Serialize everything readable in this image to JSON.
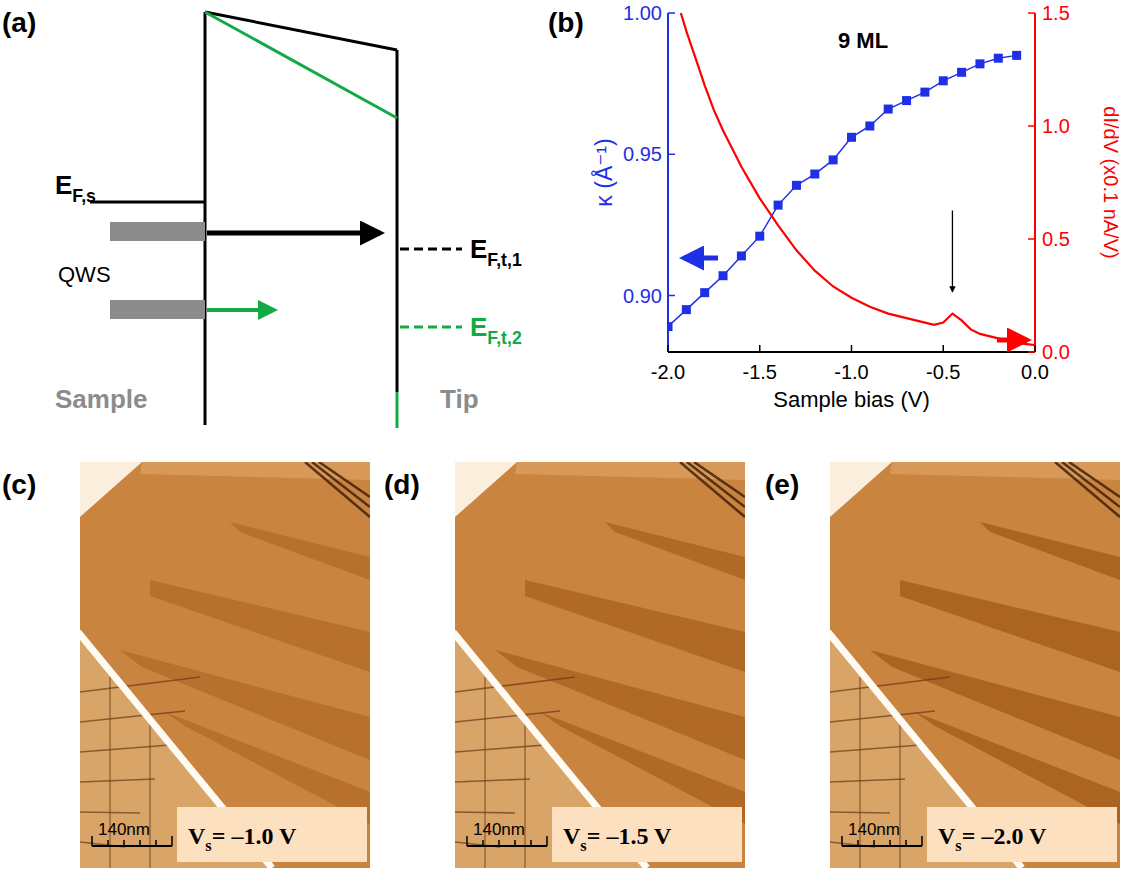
{
  "figure": {
    "panel_labels": [
      "(a)",
      "(b)",
      "(c)",
      "(d)",
      "(e)"
    ]
  },
  "diagram": {
    "fermi_sample": {
      "main": "E",
      "sub": "F,s"
    },
    "qws": "QWS",
    "fermi_tip_1": {
      "main": "E",
      "sub": "F,t,1"
    },
    "fermi_tip_2": {
      "main": "E",
      "sub": "F,t,2"
    },
    "sample": "Sample",
    "tip": "Tip"
  },
  "chart_data": {
    "type": "line",
    "title": "9 ML",
    "x_label": "Sample bias (V)",
    "y_label": "κ (Å⁻¹)",
    "y2_label": "dI/dV (x0.1 nA/V)",
    "xlim": [
      -2.0,
      0.0
    ],
    "xticks": [
      {
        "value": -2.0,
        "label": "-2.0"
      },
      {
        "value": -1.5,
        "label": "-1.5"
      },
      {
        "value": -1.0,
        "label": "-1.0"
      },
      {
        "value": -0.5,
        "label": "-0.5"
      },
      {
        "value": 0.0,
        "label": "0.0"
      }
    ],
    "ylim": [
      0.88,
      1.0
    ],
    "yticks": [
      {
        "value": 0.9,
        "label": "0.90"
      },
      0.95,
      {
        "value": 1.0,
        "label": "1.00"
      }
    ],
    "y2lim": [
      0,
      1.5
    ],
    "y2ticks": [
      {
        "value": 0,
        "label": "0.0"
      },
      0.5,
      {
        "value": 1.0,
        "label": "1.0"
      },
      1.5
    ],
    "series": [
      {
        "color": "#1f2fe6",
        "marker": "square",
        "line_style": "solid",
        "x": [
          -2.0,
          -1.9,
          -1.8,
          -1.7,
          -1.6,
          -1.5,
          -1.4,
          -1.3,
          -1.2,
          -1.1,
          -1.0,
          -0.9,
          -0.8,
          -0.7,
          -0.6,
          -0.5,
          -0.4,
          -0.3,
          -0.2,
          -0.1
        ],
        "values": [
          0.889,
          0.895,
          0.901,
          0.907,
          0.914,
          0.921,
          0.932,
          0.939,
          0.943,
          0.948,
          0.956,
          0.96,
          0.966,
          0.969,
          0.972,
          0.976,
          0.979,
          0.982,
          0.984,
          0.985
        ]
      },
      {
        "color": "#ff0000",
        "marker": "none",
        "line_style": "solid",
        "axis": "y2",
        "x": [
          -1.93,
          -1.9,
          -1.85,
          -1.8,
          -1.75,
          -1.7,
          -1.6,
          -1.5,
          -1.4,
          -1.3,
          -1.2,
          -1.1,
          -1.0,
          -0.9,
          -0.8,
          -0.7,
          -0.6,
          -0.55,
          -0.5,
          -0.45,
          -0.4,
          -0.35,
          -0.3,
          -0.2,
          -0.1,
          0.0
        ],
        "values": [
          1.5,
          1.42,
          1.3,
          1.18,
          1.07,
          0.98,
          0.82,
          0.68,
          0.56,
          0.45,
          0.36,
          0.29,
          0.24,
          0.2,
          0.17,
          0.15,
          0.13,
          0.12,
          0.13,
          0.17,
          0.14,
          0.1,
          0.08,
          0.06,
          0.04,
          0.03
        ]
      }
    ],
    "annotations": [
      {
        "x": -0.45,
        "y": 0.25,
        "axis": "y2"
      }
    ]
  },
  "images": [
    {
      "label": {
        "main": "V",
        "sub": "s",
        "rest": "= –1.0 V"
      },
      "scale_bar": "140nm"
    },
    {
      "label": {
        "main": "V",
        "sub": "s",
        "rest": "= –1.5 V"
      },
      "scale_bar": "140nm"
    },
    {
      "label": {
        "main": "V",
        "sub": "s",
        "rest": "= –2.0 V"
      },
      "scale_bar": "140nm"
    }
  ]
}
